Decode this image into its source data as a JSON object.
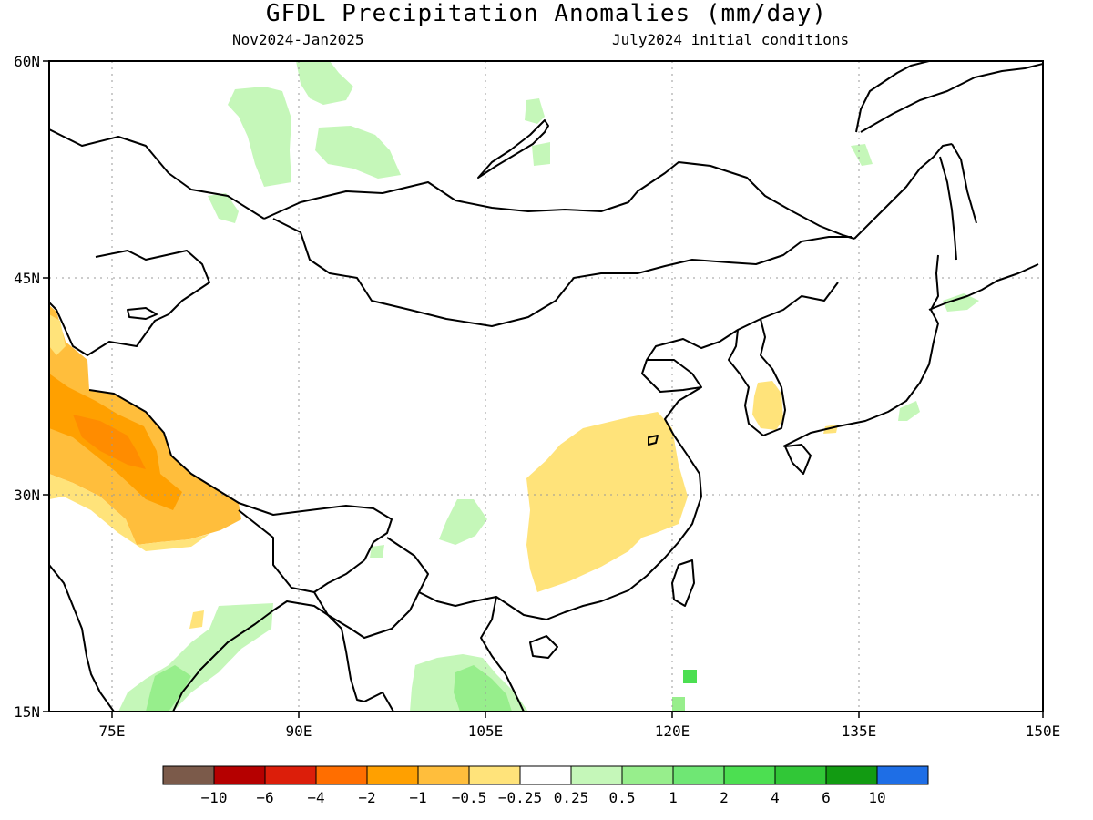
{
  "title": "GFDL Precipitation Anomalies (mm/day)",
  "period": "Nov2024-Jan2025",
  "initial_conditions": "July2024 initial conditions",
  "lat_labels": [
    "60N",
    "45N",
    "30N",
    "15N"
  ],
  "lon_labels": [
    "75E",
    "90E",
    "105E",
    "120E",
    "135E",
    "150E"
  ],
  "colorbar": {
    "colors": [
      "#7b5a4a",
      "#b50000",
      "#dc1e0a",
      "#ff6e00",
      "#ffa000",
      "#ffbe3c",
      "#ffe37a",
      "#ffffff",
      "#c5f7b9",
      "#97ee8c",
      "#6fe774",
      "#4cdf51",
      "#31c737",
      "#129b12",
      "#1e6ee6"
    ],
    "labels": [
      "-10",
      "-6",
      "-4",
      "-2",
      "-1",
      "-0.5",
      "-0.25",
      "0.25",
      "0.5",
      "1",
      "2",
      "4",
      "6",
      "10"
    ]
  },
  "map": {
    "lon_range": [
      70,
      150
    ],
    "lat_range": [
      15,
      60
    ],
    "anomaly_regions": [
      {
        "id": "himalaya-dry",
        "class": "-1 to -0.5",
        "color": "#ffbe3c"
      },
      {
        "id": "himalaya-core",
        "class": "-2 to -1",
        "color": "#ffa000"
      },
      {
        "id": "central-china-dry",
        "class": "-0.5 to -0.25",
        "color": "#ffe37a"
      },
      {
        "id": "korea-dry",
        "class": "-0.5 to -0.25",
        "color": "#ffe37a"
      },
      {
        "id": "siberia-wet",
        "class": "0.25 to 0.5",
        "color": "#c5f7b9"
      },
      {
        "id": "indochina-wet",
        "class": "0.5 to 1",
        "color": "#97ee8c"
      }
    ]
  }
}
